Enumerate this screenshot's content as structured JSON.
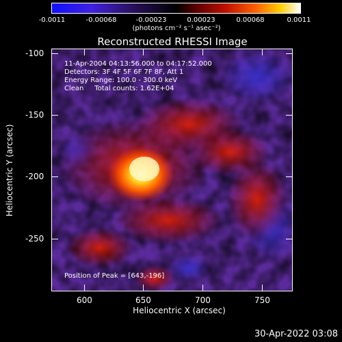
{
  "colorbar": {
    "ticks": [
      "-0.0011",
      "-0.00068",
      "-0.00023",
      "0.00023",
      "0.00068",
      "0.0011"
    ],
    "units": "(photons cm⁻² s⁻¹ asec⁻²)"
  },
  "title": "Reconstructed RHESSI Image",
  "axes": {
    "xlabel": "Heliocentric X (arcsec)",
    "ylabel": "Heliocentric Y (arcsec)",
    "xticks": [
      "600",
      "650",
      "700",
      "750"
    ],
    "yticks": [
      "-100",
      "-150",
      "-200",
      "-250"
    ]
  },
  "info": {
    "line1": "11-Apr-2004 04:13:56.000 to 04:17:52.000",
    "line2": "Detectors: 3F 4F 5F 6F 7F 8F, Att 1",
    "line3": "Energy Range: 100.0 - 300.0 keV",
    "line4": "Clean     Total counts: 1.62E+04",
    "peak": "Position of Peak = [643,-196]"
  },
  "footer": {
    "date": "30-Apr-2022 03:08"
  },
  "colors": {
    "background": "#000000",
    "colorbar_low": "#0000ff",
    "colorbar_mid": "#000000",
    "colorbar_high": "#ffffff"
  }
}
